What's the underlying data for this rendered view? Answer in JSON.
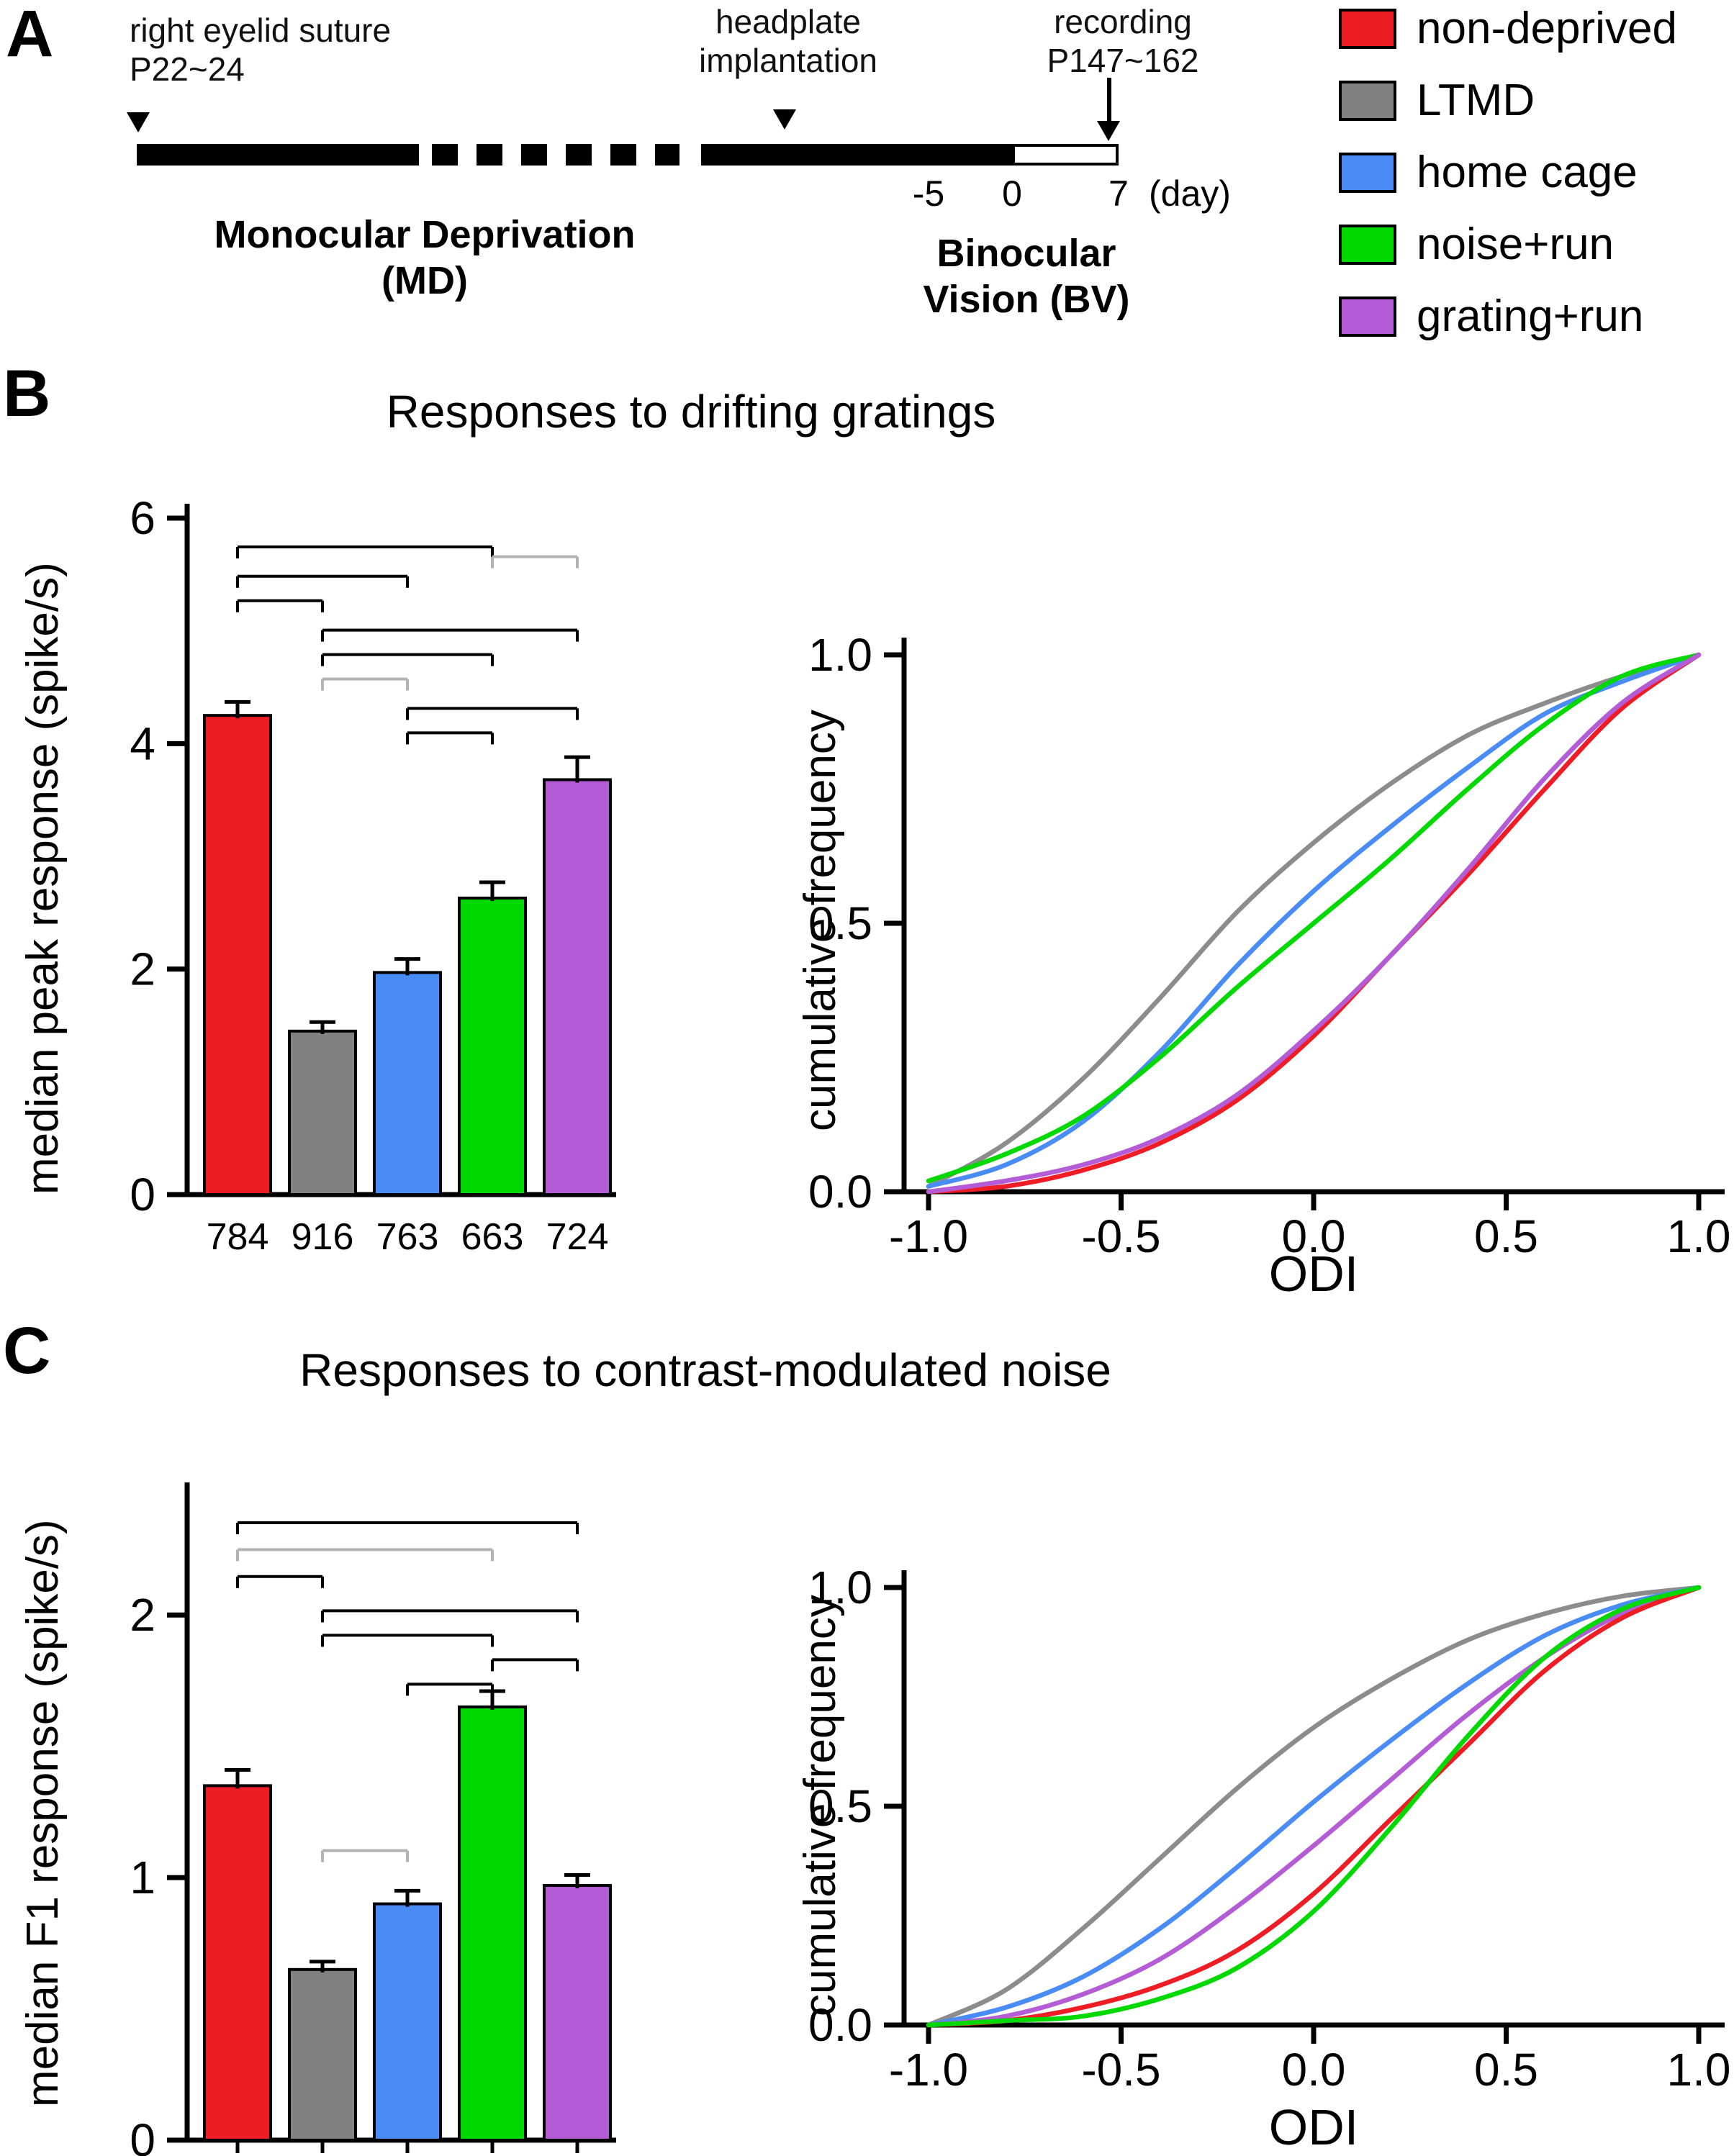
{
  "panelA": {
    "label": "A",
    "suture_line1": "right eyelid suture",
    "suture_line2": "P22~24",
    "headplate_line1": "headplate",
    "headplate_line2": "implantation",
    "recording_line1": "recording",
    "recording_line2": "P147~162",
    "tick_minus5": "-5",
    "tick_zero": "0",
    "tick_seven": "7",
    "day_label": "(day)",
    "md_line1": "Monocular Deprivation",
    "md_line2": "(MD)",
    "bv_line1": "Binocular",
    "bv_line2": "Vision (BV)"
  },
  "legend": {
    "items": [
      {
        "label": "non-deprived",
        "color": "#ee1c25"
      },
      {
        "label": "LTMD",
        "color": "#808080"
      },
      {
        "label": "home cage",
        "color": "#4a8cf5"
      },
      {
        "label": "noise+run",
        "color": "#00d900"
      },
      {
        "label": "grating+run",
        "color": "#b45cd6"
      }
    ]
  },
  "panelB": {
    "label": "B",
    "title": "Responses to drifting gratings"
  },
  "panelC": {
    "label": "C",
    "title": "Responses to contrast-modulated noise"
  },
  "chart_data": [
    {
      "id": "bar_gratings",
      "type": "bar",
      "panel": "B",
      "title": "Responses to drifting gratings",
      "ylabel": "median peak response (spike/s)",
      "categories": [
        "non-deprived",
        "LTMD",
        "home cage",
        "noise+run",
        "grating+run"
      ],
      "values": [
        4.25,
        1.45,
        1.97,
        2.63,
        3.68
      ],
      "errors": [
        0.12,
        0.08,
        0.12,
        0.14,
        0.2
      ],
      "n_labels": [
        "784",
        "916",
        "763",
        "663",
        "724"
      ],
      "colors": [
        "#ee1c25",
        "#808080",
        "#4a8cf5",
        "#00d900",
        "#b45cd6"
      ],
      "ylim": [
        0,
        6
      ],
      "yticks": [
        0,
        2,
        4,
        6
      ],
      "significance_brackets": [
        {
          "a": 0,
          "b": 3,
          "row": 0,
          "shade": "black"
        },
        {
          "a": 3,
          "b": 4,
          "row": 0.4,
          "shade": "gray"
        },
        {
          "a": 0,
          "b": 2,
          "row": 1.2,
          "shade": "black"
        },
        {
          "a": 0,
          "b": 1,
          "row": 2.2,
          "shade": "black"
        },
        {
          "a": 1,
          "b": 4,
          "row": 3.4,
          "shade": "black"
        },
        {
          "a": 1,
          "b": 3,
          "row": 4.4,
          "shade": "black"
        },
        {
          "a": 1,
          "b": 2,
          "row": 5.4,
          "shade": "gray"
        },
        {
          "a": 2,
          "b": 4,
          "row": 6.6,
          "shade": "black"
        },
        {
          "a": 2,
          "b": 3,
          "row": 7.6,
          "shade": "black"
        }
      ]
    },
    {
      "id": "cdf_gratings",
      "type": "line",
      "panel": "B",
      "xlabel": "ODI",
      "ylabel": "cumulative frequency",
      "xlim": [
        -1,
        1
      ],
      "ylim": [
        0,
        1
      ],
      "xtick_labels": [
        "-1.0",
        "-0.5",
        "0.0",
        "0.5",
        "1.0"
      ],
      "ytick_labels": [
        "0.0",
        "0.5",
        "1.0"
      ],
      "x": [
        -1,
        -0.8,
        -0.6,
        -0.4,
        -0.2,
        0,
        0.2,
        0.4,
        0.6,
        0.8,
        1
      ],
      "series": [
        {
          "name": "LTMD",
          "color": "#8c8c8c",
          "y": [
            0.01,
            0.09,
            0.21,
            0.36,
            0.52,
            0.65,
            0.76,
            0.85,
            0.91,
            0.96,
            1.0
          ]
        },
        {
          "name": "home cage",
          "color": "#4a8cf5",
          "y": [
            0.01,
            0.05,
            0.13,
            0.26,
            0.42,
            0.56,
            0.68,
            0.79,
            0.89,
            0.95,
            1.0
          ]
        },
        {
          "name": "noise+run",
          "color": "#00d900",
          "y": [
            0.02,
            0.07,
            0.14,
            0.25,
            0.38,
            0.5,
            0.62,
            0.75,
            0.87,
            0.96,
            1.0
          ]
        },
        {
          "name": "non-deprived",
          "color": "#ee1c25",
          "y": [
            0.0,
            0.01,
            0.04,
            0.09,
            0.17,
            0.29,
            0.44,
            0.59,
            0.75,
            0.9,
            1.0
          ]
        },
        {
          "name": "grating+run",
          "color": "#b45cd6",
          "y": [
            0.0,
            0.02,
            0.05,
            0.1,
            0.18,
            0.3,
            0.44,
            0.6,
            0.77,
            0.91,
            1.0
          ]
        }
      ]
    },
    {
      "id": "bar_noise",
      "type": "bar",
      "panel": "C",
      "title": "Responses to contrast-modulated noise",
      "ylabel": "median F1 response (spike/s)",
      "categories": [
        "non-deprived",
        "LTMD",
        "home cage",
        "noise+run",
        "grating+run"
      ],
      "values": [
        1.35,
        0.65,
        0.9,
        1.65,
        0.97
      ],
      "errors": [
        0.06,
        0.03,
        0.05,
        0.06,
        0.04
      ],
      "colors": [
        "#ee1c25",
        "#808080",
        "#4a8cf5",
        "#00d900",
        "#b45cd6"
      ],
      "ylim": [
        0,
        2.45
      ],
      "yticks": [
        0,
        1,
        2
      ],
      "significance_brackets": [
        {
          "a": 0,
          "b": 4,
          "row": 0,
          "shade": "black"
        },
        {
          "a": 0,
          "b": 3,
          "row": 1.1,
          "shade": "gray"
        },
        {
          "a": 0,
          "b": 1,
          "row": 2.2,
          "shade": "black"
        },
        {
          "a": 1,
          "b": 4,
          "row": 3.6,
          "shade": "black"
        },
        {
          "a": 1,
          "b": 3,
          "row": 4.6,
          "shade": "black"
        },
        {
          "a": 3,
          "b": 4,
          "row": 5.6,
          "shade": "black"
        },
        {
          "a": 2,
          "b": 3,
          "row": 6.6,
          "shade": "black"
        },
        {
          "a": 1,
          "b": 2,
          "row": 13.4,
          "shade": "gray"
        }
      ]
    },
    {
      "id": "cdf_noise",
      "type": "line",
      "panel": "C",
      "xlabel": "ODI",
      "ylabel": "cumulative frequency",
      "xlim": [
        -1,
        1
      ],
      "ylim": [
        0,
        1
      ],
      "xtick_labels": [
        "-1.0",
        "-0.5",
        "0.0",
        "0.5",
        "1.0"
      ],
      "ytick_labels": [
        "0.0",
        "0.5",
        "1.0"
      ],
      "x": [
        -1,
        -0.8,
        -0.6,
        -0.4,
        -0.2,
        0,
        0.2,
        0.4,
        0.6,
        0.8,
        1
      ],
      "series": [
        {
          "name": "LTMD",
          "color": "#8c8c8c",
          "y": [
            0.0,
            0.08,
            0.22,
            0.38,
            0.54,
            0.68,
            0.79,
            0.88,
            0.94,
            0.98,
            1.0
          ]
        },
        {
          "name": "home cage",
          "color": "#4a8cf5",
          "y": [
            0.0,
            0.04,
            0.11,
            0.22,
            0.36,
            0.51,
            0.65,
            0.78,
            0.89,
            0.96,
            1.0
          ]
        },
        {
          "name": "grating+run",
          "color": "#b45cd6",
          "y": [
            0.0,
            0.02,
            0.07,
            0.15,
            0.27,
            0.41,
            0.56,
            0.71,
            0.84,
            0.94,
            1.0
          ]
        },
        {
          "name": "non-deprived",
          "color": "#ee1c25",
          "y": [
            0.0,
            0.01,
            0.04,
            0.09,
            0.17,
            0.3,
            0.47,
            0.64,
            0.81,
            0.93,
            1.0
          ]
        },
        {
          "name": "noise+run",
          "color": "#00d900",
          "y": [
            0.0,
            0.01,
            0.02,
            0.06,
            0.13,
            0.26,
            0.45,
            0.66,
            0.84,
            0.95,
            1.0
          ]
        }
      ]
    }
  ]
}
